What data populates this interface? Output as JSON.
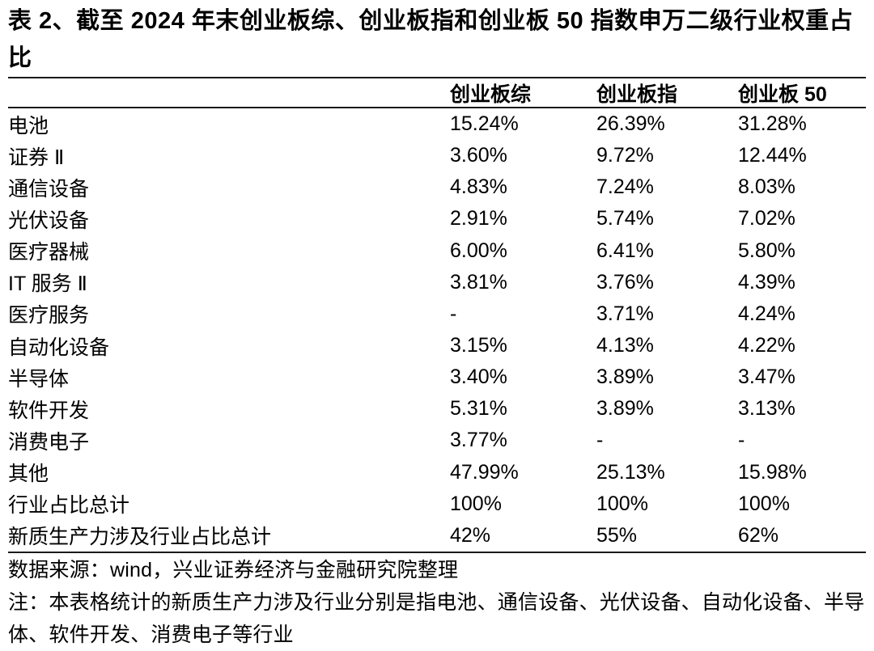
{
  "title": "表 2、截至 2024 年末创业板综、创业板指和创业板 50 指数申万二级行业权重占比",
  "table": {
    "columns": [
      "创业板综",
      "创业板指",
      "创业板 50"
    ],
    "rows": [
      {
        "label": "电池",
        "values": [
          "15.24%",
          "26.39%",
          "31.28%"
        ]
      },
      {
        "label": "证券 Ⅱ",
        "values": [
          "3.60%",
          "9.72%",
          "12.44%"
        ]
      },
      {
        "label": "通信设备",
        "values": [
          "4.83%",
          "7.24%",
          "8.03%"
        ]
      },
      {
        "label": "光伏设备",
        "values": [
          "2.91%",
          "5.74%",
          "7.02%"
        ]
      },
      {
        "label": "医疗器械",
        "values": [
          "6.00%",
          "6.41%",
          "5.80%"
        ]
      },
      {
        "label": "IT 服务 Ⅱ",
        "values": [
          "3.81%",
          "3.76%",
          "4.39%"
        ]
      },
      {
        "label": "医疗服务",
        "values": [
          "-",
          "3.71%",
          "4.24%"
        ]
      },
      {
        "label": "自动化设备",
        "values": [
          "3.15%",
          "4.13%",
          "4.22%"
        ]
      },
      {
        "label": "半导体",
        "values": [
          "3.40%",
          "3.89%",
          "3.47%"
        ]
      },
      {
        "label": "软件开发",
        "values": [
          "5.31%",
          "3.89%",
          "3.13%"
        ]
      },
      {
        "label": "消费电子",
        "values": [
          "3.77%",
          "-",
          "-"
        ]
      },
      {
        "label": "其他",
        "values": [
          "47.99%",
          "25.13%",
          "15.98%"
        ]
      },
      {
        "label": "行业占比总计",
        "values": [
          "100%",
          "100%",
          "100%"
        ]
      },
      {
        "label": "新质生产力涉及行业占比总计",
        "values": [
          "42%",
          "55%",
          "62%"
        ]
      }
    ]
  },
  "footer": {
    "source": "数据来源：wind，兴业证券经济与金融研究院整理",
    "note": "注：本表格统计的新质生产力涉及行业分别是指电池、通信设备、光伏设备、自动化设备、半导体、软件开发、消费电子等行业"
  },
  "colors": {
    "background": "#ffffff",
    "text": "#000000",
    "rule": "#1a1a1a"
  }
}
